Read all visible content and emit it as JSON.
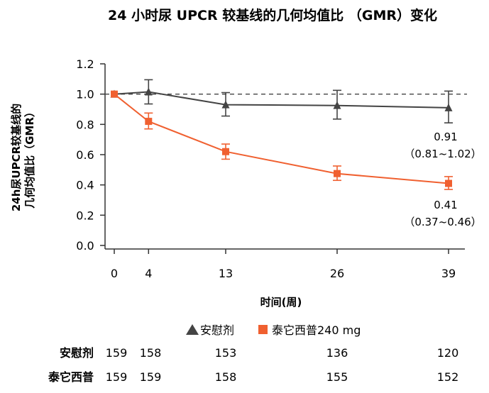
{
  "chart_data": {
    "type": "line",
    "title": "24 小时尿 UPCR 较基线的几何均值比 （GMR）变化",
    "ylabel_line1": "24h尿UPCR较基线的",
    "ylabel_line2": "几何均值比（GMR）",
    "xlabel": "时间(周)",
    "x": [
      0,
      4,
      13,
      26,
      39
    ],
    "xticks": [
      "0",
      "4",
      "13",
      "26",
      "39"
    ],
    "yticks": [
      "0.0",
      "0.2",
      "0.4",
      "0.6",
      "0.8",
      "1.0",
      "1.2"
    ],
    "ylim": [
      0,
      1.2
    ],
    "reference_line": 1.0,
    "series": [
      {
        "name": "安慰剂",
        "color": "#444444",
        "marker": "triangle",
        "values": [
          1.0,
          1.015,
          0.93,
          0.925,
          0.91
        ],
        "err_low": [
          1.0,
          0.935,
          0.855,
          0.835,
          0.81
        ],
        "err_high": [
          1.0,
          1.095,
          1.01,
          1.025,
          1.02
        ]
      },
      {
        "name": "泰它西普240 mg",
        "color": "#f06030",
        "marker": "square",
        "values": [
          1.0,
          0.82,
          0.62,
          0.475,
          0.41
        ],
        "err_low": [
          1.0,
          0.77,
          0.57,
          0.43,
          0.37
        ],
        "err_high": [
          1.0,
          0.875,
          0.67,
          0.525,
          0.455
        ]
      }
    ],
    "annotations": [
      {
        "series": "安慰剂",
        "value": "0.91",
        "ci": "（0.81~1.02）"
      },
      {
        "series": "泰它西普240 mg",
        "value": "0.41",
        "ci": "（0.37~0.46）"
      }
    ],
    "risk_table": [
      {
        "label": "安慰剂",
        "counts": [
          "159",
          "158",
          "153",
          "136",
          "120"
        ]
      },
      {
        "label": "泰它西普",
        "counts": [
          "159",
          "159",
          "158",
          "155",
          "152"
        ]
      }
    ]
  }
}
